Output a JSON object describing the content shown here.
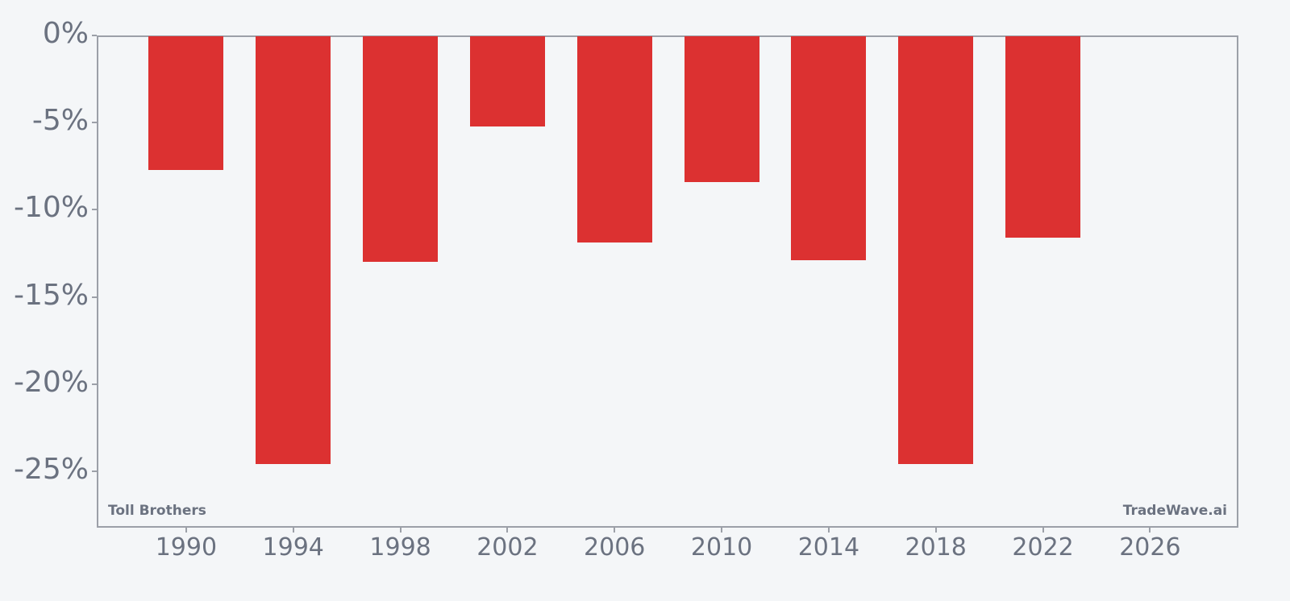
{
  "chart_data": {
    "type": "bar",
    "title": "",
    "xlabel": "",
    "ylabel": "",
    "categories": [
      "1990",
      "1994",
      "1998",
      "2002",
      "2006",
      "2010",
      "2014",
      "2018",
      "2022"
    ],
    "values": [
      -7.7,
      -24.6,
      -13.0,
      -5.2,
      -11.9,
      -8.4,
      -12.9,
      -24.6,
      -11.6
    ],
    "bar_color": "#dc3131",
    "xticks": [
      "1990",
      "1994",
      "1998",
      "2002",
      "2006",
      "2010",
      "2014",
      "2018",
      "2022",
      "2026"
    ],
    "yticks": [
      {
        "value": 0,
        "label": "0%"
      },
      {
        "value": -5,
        "label": "-5%"
      },
      {
        "value": -10,
        "label": "-10%"
      },
      {
        "value": -15,
        "label": "-15%"
      },
      {
        "value": -20,
        "label": "-20%"
      },
      {
        "value": -25,
        "label": "-25%"
      }
    ],
    "xlim": [
      1986.66,
      2029.3
    ],
    "ylim": [
      -28.24,
      0
    ],
    "grid": false,
    "legend": null
  },
  "watermarks": {
    "left": "Toll Brothers",
    "right": "TradeWave.ai"
  },
  "colors": {
    "background": "#f4f6f8",
    "axis": "#9ca0a8",
    "text": "#6b7280",
    "bar": "#dc3131"
  }
}
